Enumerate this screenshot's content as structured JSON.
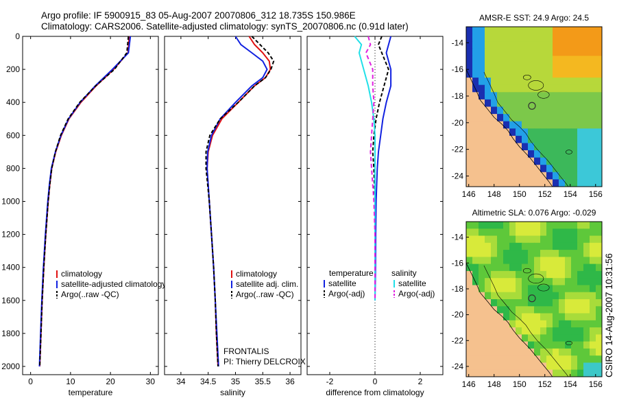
{
  "title_line1": "Argo profile: IF 5900915_83 05-Aug-2007 20070806_312 18.735S 150.986E",
  "title_line2": "Climatology: CARS2006. Satellite-adjusted climatology: synTS_20070806.nc (0.91d later)",
  "side_text": "CSIRO 14-Aug-2007 10:31:56",
  "colors": {
    "clim": "#e01010",
    "sat": "#1020e0",
    "argo": "#000000",
    "sal_sat": "#20e0e8",
    "sal_argo": "#e020e0",
    "land": "#f5c18e",
    "ocean_warm": "#f3a018",
    "ocean_green": "#3cc043"
  },
  "chart_data": [
    {
      "id": "temperature",
      "type": "line",
      "xlabel": "temperature",
      "ylabel": "",
      "xlim": [
        -2,
        32
      ],
      "ylim": [
        2050,
        0
      ],
      "xticks": [
        0,
        10,
        20,
        30
      ],
      "yticks": [
        0,
        200,
        400,
        600,
        800,
        1000,
        1200,
        1400,
        1600,
        1800,
        2000
      ],
      "series": [
        {
          "name": "climatology",
          "color": "#e01010",
          "dash": "",
          "depth": [
            0,
            100,
            200,
            300,
            400,
            500,
            600,
            700,
            800,
            900,
            1000,
            1200,
            1400,
            1600,
            1800,
            2000
          ],
          "values": [
            24.7,
            24.4,
            20.8,
            16.4,
            12.6,
            9.6,
            7.7,
            6.3,
            5.3,
            4.8,
            4.4,
            3.8,
            3.3,
            2.9,
            2.6,
            2.3
          ]
        },
        {
          "name": "satellite-adjusted climatology",
          "color": "#1020e0",
          "dash": "",
          "depth": [
            0,
            100,
            200,
            300,
            400,
            500,
            600,
            700,
            800,
            900,
            1000,
            1200,
            1400,
            1600,
            1800,
            2000
          ],
          "values": [
            25.0,
            24.5,
            20.5,
            16.2,
            12.4,
            9.5,
            7.6,
            6.2,
            5.2,
            4.7,
            4.3,
            3.7,
            3.2,
            2.8,
            2.5,
            2.2
          ]
        },
        {
          "name": "Argo(..raw -QC)",
          "color": "#000000",
          "dash": "5,3",
          "depth": [
            0,
            100,
            200,
            300,
            400,
            500,
            600,
            700,
            800,
            900,
            1000,
            1200,
            1400,
            1600,
            1800,
            2000
          ],
          "values": [
            24.5,
            24.1,
            21.0,
            16.3,
            12.3,
            9.4,
            7.5,
            6.2,
            5.3,
            4.8,
            4.4,
            3.8,
            3.3,
            2.9,
            2.6,
            2.3
          ]
        }
      ],
      "legend": [
        "climatology",
        "satellite-adjusted climatology",
        "Argo(..raw -QC)"
      ]
    },
    {
      "id": "salinity",
      "type": "line",
      "xlabel": "salinity",
      "xlim": [
        33.7,
        36.2
      ],
      "ylim": [
        2050,
        0
      ],
      "xticks": [
        34,
        34.5,
        35,
        35.5,
        36
      ],
      "series": [
        {
          "name": "climatology",
          "color": "#e01010",
          "dash": "",
          "depth": [
            0,
            50,
            100,
            150,
            200,
            250,
            300,
            400,
            500,
            600,
            700,
            800,
            900,
            1000,
            1200,
            1400,
            1600,
            1800,
            2000
          ],
          "values": [
            35.25,
            35.35,
            35.5,
            35.62,
            35.64,
            35.55,
            35.35,
            35.05,
            34.75,
            34.58,
            34.5,
            34.48,
            34.5,
            34.52,
            34.56,
            34.6,
            34.63,
            34.65,
            34.68
          ]
        },
        {
          "name": "satellite adj. clim.",
          "color": "#1020e0",
          "dash": "",
          "depth": [
            0,
            50,
            100,
            150,
            200,
            250,
            300,
            400,
            500,
            600,
            700,
            800,
            900,
            1000,
            1200,
            1400,
            1600,
            1800,
            2000
          ],
          "values": [
            35.0,
            35.1,
            35.3,
            35.5,
            35.58,
            35.5,
            35.3,
            35.0,
            34.72,
            34.56,
            34.49,
            34.48,
            34.5,
            34.52,
            34.56,
            34.6,
            34.63,
            34.66,
            34.69
          ]
        },
        {
          "name": "Argo(..raw -QC)",
          "color": "#000000",
          "dash": "5,3",
          "depth": [
            0,
            50,
            100,
            150,
            200,
            250,
            300,
            400,
            500,
            600,
            700,
            800,
            900,
            1000,
            1200,
            1400,
            1600,
            1800,
            2000
          ],
          "values": [
            35.3,
            35.45,
            35.6,
            35.7,
            35.65,
            35.55,
            35.35,
            35.05,
            34.72,
            34.53,
            34.46,
            34.46,
            34.49,
            34.52,
            34.56,
            34.6,
            34.63,
            34.65,
            34.68
          ]
        }
      ],
      "legend": [
        "climatology",
        "satellite adj. clim.",
        "Argo(..raw -QC)"
      ],
      "note_line1": "FRONTALIS",
      "note_line2": "PI: Thierry DELCROIX"
    },
    {
      "id": "difference",
      "type": "line",
      "xlabel": "difference from climatology",
      "xlim": [
        -3,
        3
      ],
      "ylim": [
        2050,
        0
      ],
      "xticks": [
        -2,
        0,
        2
      ],
      "series": [
        {
          "name": "temperature satellite",
          "color": "#1020e0",
          "dash": "",
          "depth": [
            0,
            50,
            100,
            200,
            300,
            400,
            500,
            600,
            700,
            800,
            1000,
            1200,
            1400,
            1600
          ],
          "values": [
            0.7,
            0.6,
            0.5,
            0.7,
            0.7,
            0.5,
            0.35,
            0.25,
            0.15,
            0.1,
            0.05,
            0.03,
            0.02,
            0.0
          ]
        },
        {
          "name": "temperature Argo(-adj)",
          "color": "#000000",
          "dash": "5,3",
          "depth": [
            0,
            50,
            100,
            200,
            300,
            400,
            500,
            600,
            700,
            800,
            1000,
            1200,
            1400,
            1600
          ],
          "values": [
            0.3,
            0.15,
            0.3,
            0.6,
            0.4,
            0.2,
            0.05,
            -0.05,
            -0.1,
            -0.05,
            0.0,
            0.0,
            0.0,
            0.0
          ]
        },
        {
          "name": "salinity satellite",
          "color": "#20e0e8",
          "dash": "",
          "depth": [
            0,
            50,
            100,
            200,
            300,
            400,
            500,
            600,
            700,
            800,
            1000,
            1200,
            1400,
            1600
          ],
          "values": [
            -0.9,
            -0.6,
            -0.7,
            -0.5,
            -0.3,
            -0.15,
            -0.05,
            0.0,
            0.0,
            0.0,
            0.0,
            0.0,
            0.0,
            0.0
          ]
        },
        {
          "name": "salinity Argo(-adj)",
          "color": "#e020e0",
          "dash": "6,4",
          "depth": [
            0,
            50,
            100,
            200,
            300,
            400,
            500,
            600,
            700,
            800,
            1000,
            1200,
            1400,
            1600
          ],
          "values": [
            -0.3,
            -0.2,
            -0.4,
            -0.1,
            -0.1,
            -0.05,
            -0.1,
            -0.15,
            -0.2,
            -0.15,
            -0.05,
            0.0,
            0.0,
            0.0
          ]
        }
      ],
      "legend_headers": [
        "temperature",
        "salinity"
      ],
      "legend_left": [
        "satellite",
        "Argo(-adj)"
      ],
      "legend_right": [
        "satellite",
        "Argo(-adj)"
      ]
    },
    {
      "id": "map_sst",
      "type": "heatmap",
      "title": "AMSR-E SST: 24.9 Argo: 24.5",
      "xlim": [
        145.8,
        156.5
      ],
      "ylim": [
        -24.8,
        -12.8
      ],
      "xticks": [
        146,
        148,
        150,
        152,
        154,
        156
      ],
      "yticks": [
        -14,
        -16,
        -18,
        -20,
        -22,
        -24
      ],
      "argo_position": [
        150.986,
        -18.735
      ]
    },
    {
      "id": "map_sla",
      "type": "heatmap",
      "title": "Altimetric SLA: 0.076 Argo: -0.029",
      "xlim": [
        145.8,
        156.5
      ],
      "ylim": [
        -24.8,
        -12.8
      ],
      "xticks": [
        146,
        148,
        150,
        152,
        154,
        156
      ],
      "yticks": [
        -14,
        -16,
        -18,
        -20,
        -22,
        -24
      ],
      "argo_position": [
        150.986,
        -18.735
      ]
    }
  ]
}
